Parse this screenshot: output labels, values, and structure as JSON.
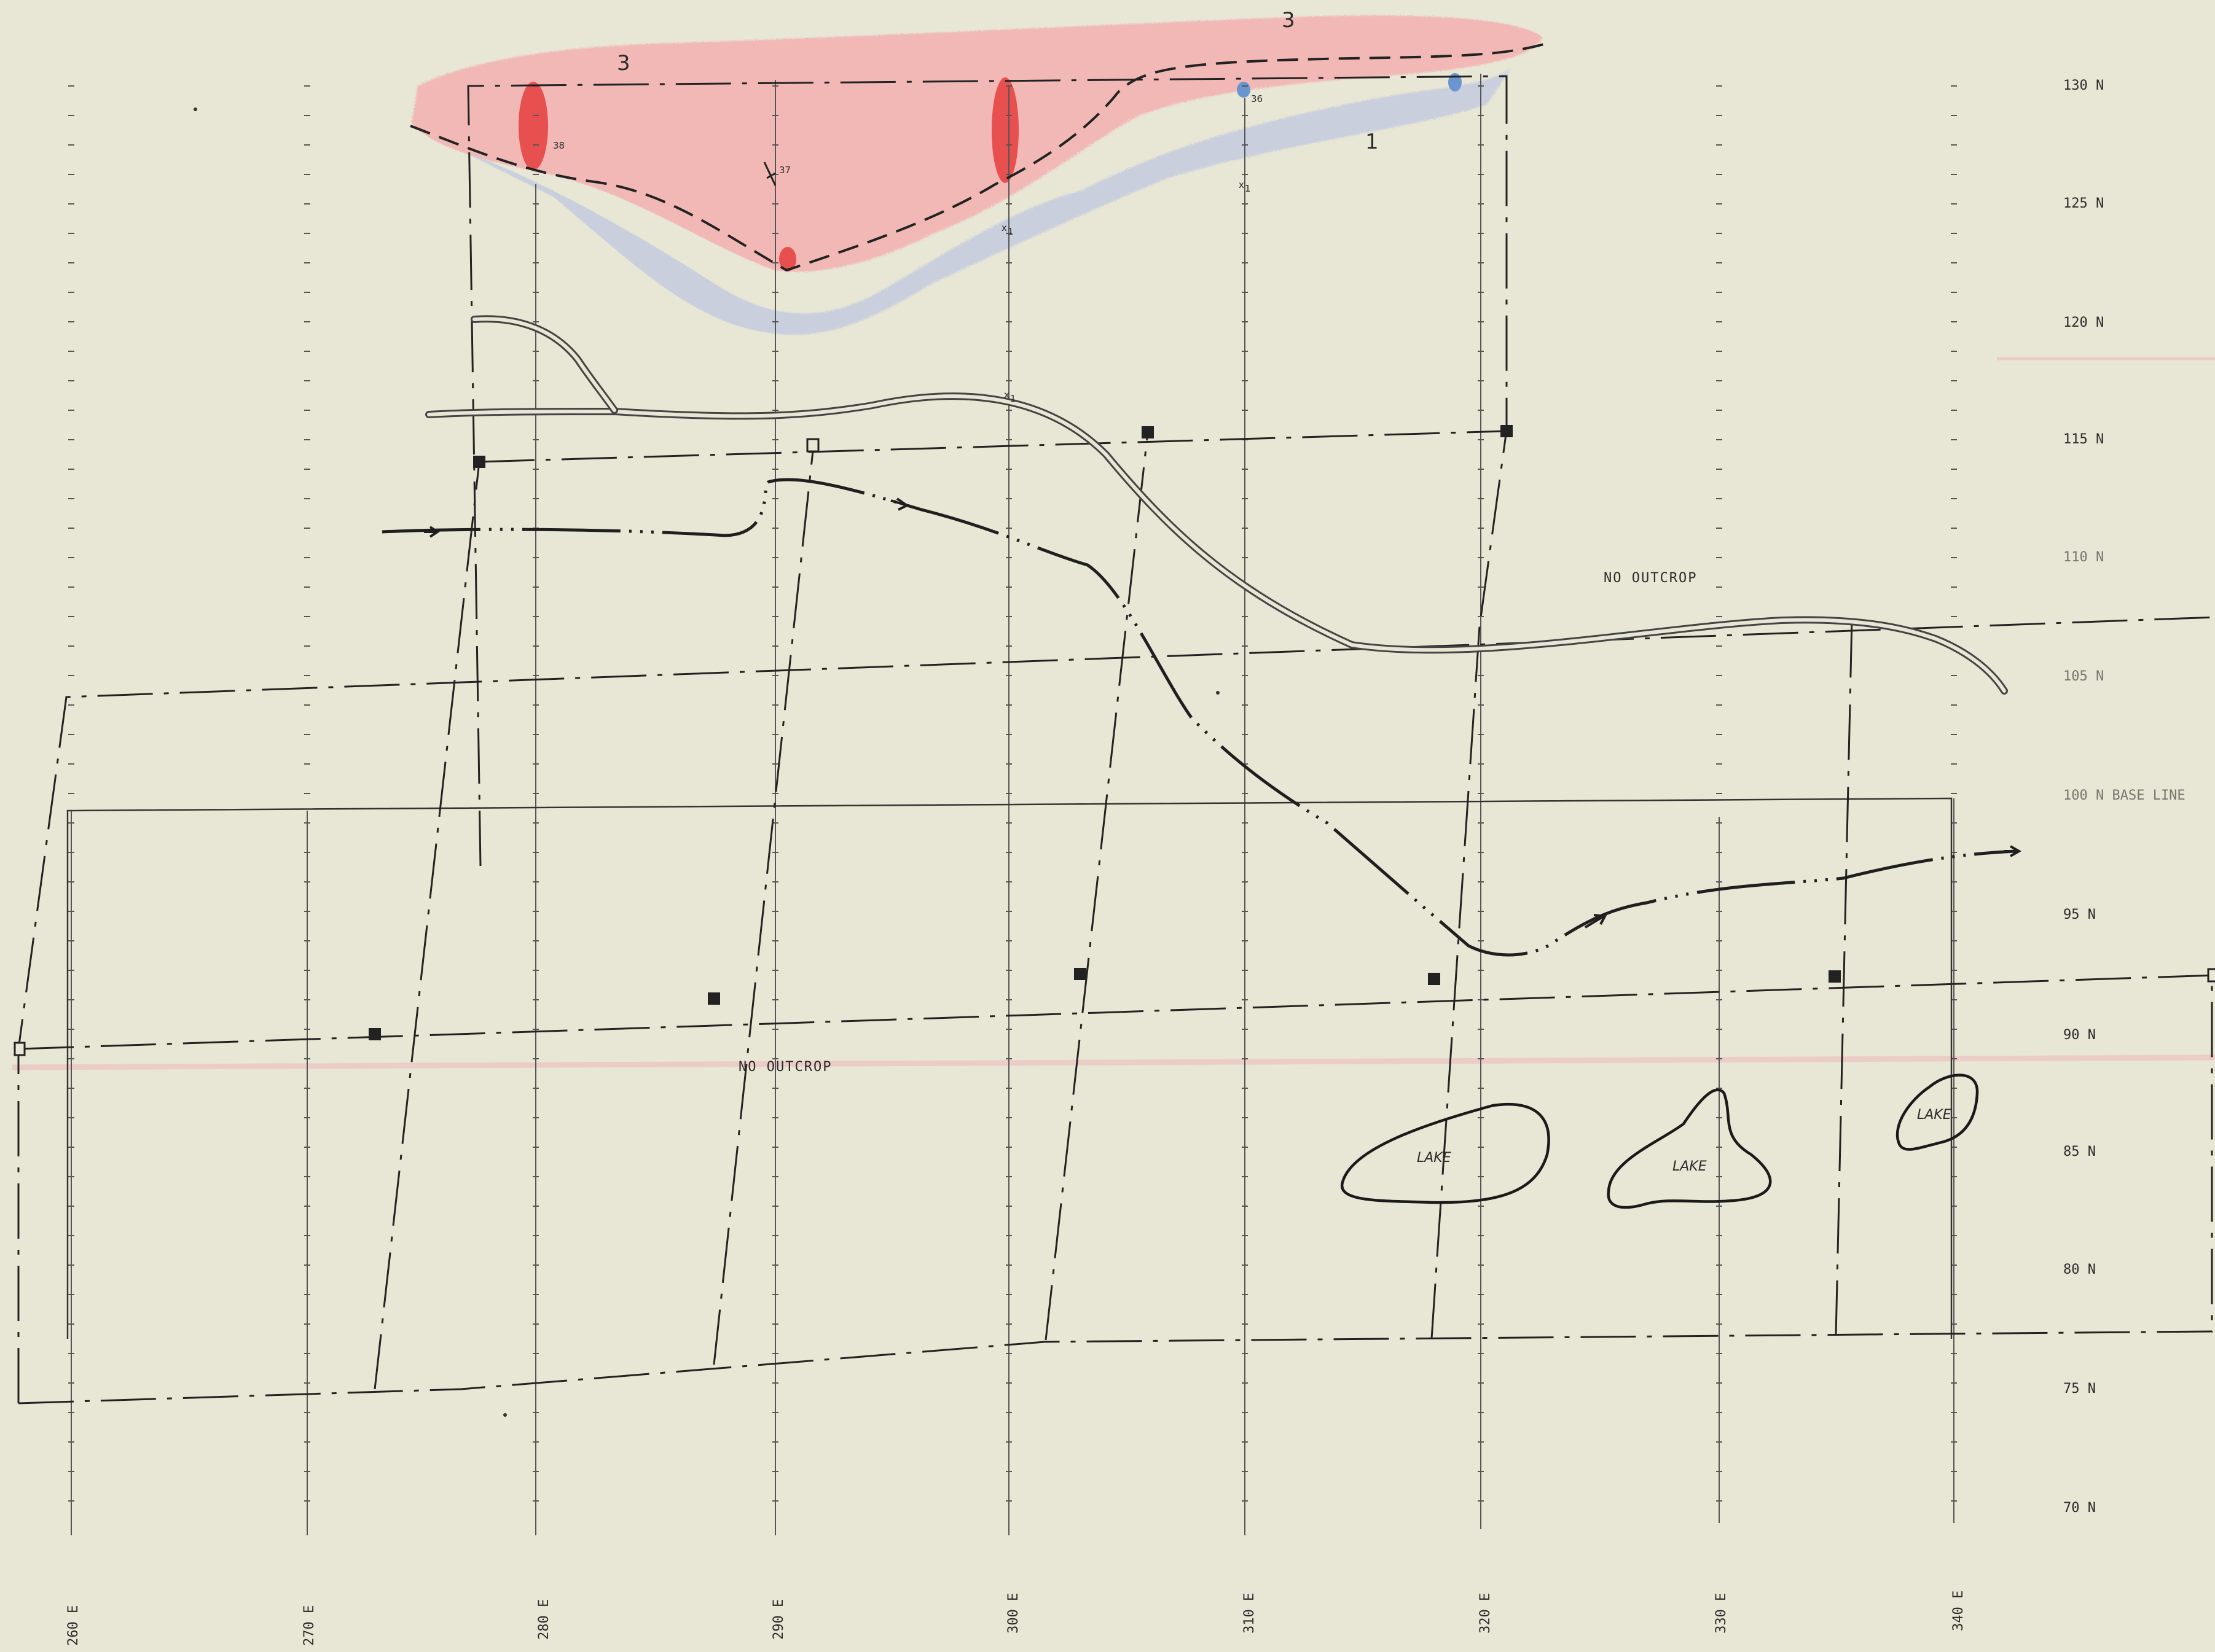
{
  "northings": [
    "130 N",
    "125 N",
    "120 N",
    "115 N",
    "110 N",
    "105 N",
    "100 N  BASE  LINE",
    "95 N",
    "90 N",
    "85 N",
    "80 N",
    "75 N",
    "70 N"
  ],
  "eastings": [
    "260 E",
    "270 E",
    "280 E",
    "290 E",
    "300 E",
    "310 E",
    "320 E",
    "330 E",
    "340 E"
  ],
  "notes": {
    "outcrop_east": "NO    OUTCROP",
    "outcrop_west": "NO    OUTCROP"
  },
  "lakes": [
    "LAKE",
    "LAKE",
    "LAKE"
  ],
  "units": {
    "unit_3_west": "3",
    "unit_3_east": "3",
    "unit_1": "1"
  },
  "stations": {
    "s38": "38",
    "s37": "37",
    "s36": "36",
    "x_mark": "x",
    "x_sub": "1"
  },
  "colors": {
    "paper": "#e8e6d4",
    "ink": "#2b2b2b",
    "grid": "#555555",
    "unit3_fill": "#f2b6b4",
    "unit3_strong": "#e8504f",
    "blue_shade": "#b9c4dc",
    "blue_point": "#6a96d0"
  }
}
